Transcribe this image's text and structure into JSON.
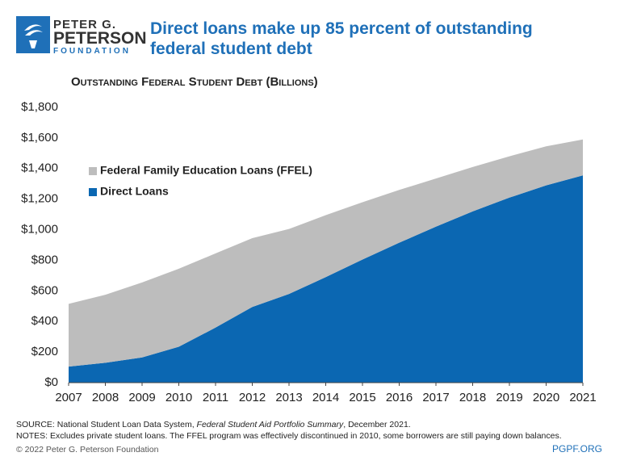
{
  "logo": {
    "line1": "PETER G.",
    "line2": "PETERSON",
    "line3": "FOUNDATION"
  },
  "chart_data": {
    "type": "stacked-area",
    "title": "Direct loans make up 85 percent of outstanding federal student debt",
    "subtitle": "Outstanding Federal Student Debt (Billions)",
    "x": [
      2007,
      2008,
      2009,
      2010,
      2011,
      2012,
      2013,
      2014,
      2015,
      2016,
      2017,
      2018,
      2019,
      2020,
      2021
    ],
    "xlim": [
      2007,
      2021
    ],
    "xticks": [
      2007,
      2008,
      2009,
      2010,
      2011,
      2012,
      2013,
      2014,
      2015,
      2016,
      2017,
      2018,
      2019,
      2020,
      2021
    ],
    "ylim": [
      0,
      1800
    ],
    "yticks": [
      {
        "value": 0,
        "label": "$0"
      },
      {
        "value": 200,
        "label": "$200"
      },
      {
        "value": 400,
        "label": "$400"
      },
      {
        "value": 600,
        "label": "$600"
      },
      {
        "value": 800,
        "label": "$800"
      },
      {
        "value": 1000,
        "label": "$1,000"
      },
      {
        "value": 1200,
        "label": "$1,200"
      },
      {
        "value": 1400,
        "label": "$1,400"
      },
      {
        "value": 1600,
        "label": "$1,600"
      },
      {
        "value": 1800,
        "label": "$1,800"
      }
    ],
    "series": [
      {
        "name": "Direct Loans",
        "color": "#0b67b2",
        "values": [
          105,
          130,
          165,
          235,
          360,
          495,
          580,
          690,
          805,
          915,
          1020,
          1120,
          1210,
          1290,
          1355
        ]
      },
      {
        "name": "Federal Family Education Loans (FFEL)",
        "color": "#bdbdbd",
        "values": [
          410,
          445,
          490,
          510,
          485,
          450,
          425,
          405,
          375,
          345,
          315,
          290,
          270,
          255,
          235
        ]
      }
    ]
  },
  "footer": {
    "source": [
      "SOURCE: National Student Loan Data System,",
      "Federal Student Aid Portfolio Summary",
      ", December 2021."
    ],
    "notes": "NOTES: Excludes private student loans. The FFEL program was effectively discontinued in 2010, some borrowers are still paying down balances.",
    "copyright": "© 2022 Peter G. Peterson Foundation",
    "site": "PGPF.ORG"
  }
}
